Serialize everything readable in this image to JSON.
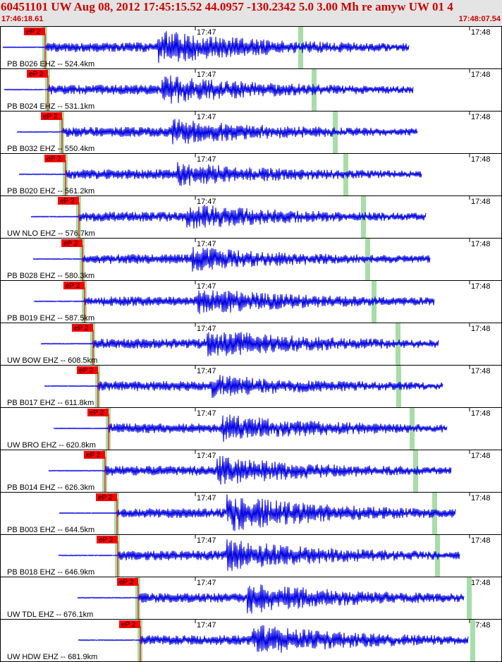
{
  "header": {
    "title": "60451101 UW Aug 08, 2012 17:45:15.52    44.0957 -130.2342  5.0 3.00 Mh re amyw UW 01   4",
    "time_start": "17:46:18.61",
    "time_end": "17:48:07.54"
  },
  "minute_labels": [
    "17:47",
    "17:48"
  ],
  "phase_label": "eP 2",
  "colors": {
    "trace": "#0000e0",
    "pick": "#ff0000",
    "marker": "#a8dca8",
    "text": "#000000",
    "border": "#000000"
  },
  "traces": [
    {
      "label": "PB B026 EHZ -- 524.4km",
      "pick": 0.09,
      "amp": 0.85,
      "p_arr": 0.34,
      "green": 0.6
    },
    {
      "label": "PB B024 EHZ -- 531.1km",
      "pick": 0.096,
      "amp": 0.7,
      "p_arr": 0.35,
      "green": 0.627
    },
    {
      "label": "PB B032 EHZ -- 550.4km",
      "pick": 0.124,
      "amp": 0.6,
      "p_arr": 0.37,
      "green": 0.669
    },
    {
      "label": "PB B020 EHZ -- 561.2km",
      "pick": 0.131,
      "amp": 0.55,
      "p_arr": 0.38,
      "green": 0.69
    },
    {
      "label": "UW NLO EHZ -- 576.7km",
      "pick": 0.157,
      "amp": 0.6,
      "p_arr": 0.4,
      "green": 0.725
    },
    {
      "label": "PB B028 EHZ -- 580.3km",
      "pick": 0.164,
      "amp": 0.55,
      "p_arr": 0.41,
      "green": 0.733
    },
    {
      "label": "PB B019 EHZ -- 587.5km",
      "pick": 0.169,
      "amp": 0.65,
      "p_arr": 0.42,
      "green": 0.746
    },
    {
      "label": "UW BOW EHZ -- 608.5km",
      "pick": 0.185,
      "amp": 0.7,
      "p_arr": 0.44,
      "green": 0.793
    },
    {
      "label": "PB B017 EHZ -- 611.8km",
      "pick": 0.195,
      "amp": 0.5,
      "p_arr": 0.45,
      "green": 0.795
    },
    {
      "label": "UW BRO EHZ -- 620.8km",
      "pick": 0.216,
      "amp": 0.65,
      "p_arr": 0.47,
      "green": 0.821
    },
    {
      "label": "PB B014 EHZ -- 626.3km",
      "pick": 0.209,
      "amp": 0.7,
      "p_arr": 0.46,
      "green": 0.829
    },
    {
      "label": "PB B003 EHZ -- 644.5km",
      "pick": 0.233,
      "amp": 0.9,
      "p_arr": 0.48,
      "green": 0.867
    },
    {
      "label": "PB B018 EHZ -- 646.9km",
      "pick": 0.234,
      "amp": 0.75,
      "p_arr": 0.48,
      "green": 0.872
    },
    {
      "label": "UW TDL EHZ -- 676.1km",
      "pick": 0.275,
      "amp": 0.75,
      "p_arr": 0.52,
      "green": 0.935
    },
    {
      "label": "UW HDW EHZ -- 681.9km",
      "pick": 0.28,
      "amp": 0.75,
      "p_arr": 0.53,
      "green": 0.943
    }
  ]
}
